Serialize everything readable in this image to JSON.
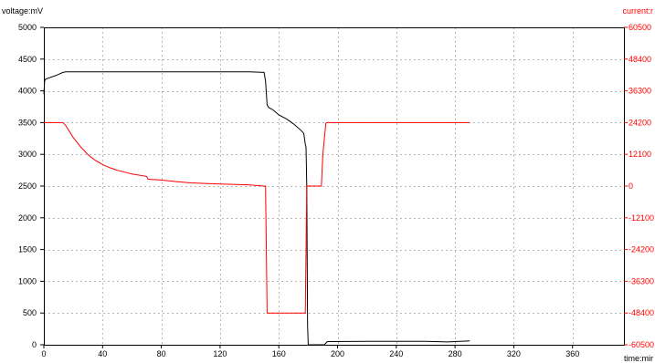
{
  "chart_data": {
    "type": "line",
    "title": "",
    "ylabel_left": "voltage:mV",
    "ylabel_right": "current:r",
    "xlabel": "time:mir",
    "xlim": [
      0,
      395
    ],
    "ylim_left": [
      0,
      5000
    ],
    "ylim_right": [
      -60500,
      60500
    ],
    "grid": true,
    "x_ticks": [
      0,
      40,
      80,
      120,
      160,
      200,
      240,
      280,
      320,
      360
    ],
    "y_ticks_left": [
      0,
      500,
      1000,
      1500,
      2000,
      2500,
      3000,
      3500,
      4000,
      4500,
      5000
    ],
    "y_ticks_right": [
      -60500,
      -48400,
      -36300,
      -24200,
      -12100,
      0,
      12100,
      24200,
      36300,
      48400,
      60500
    ],
    "series": [
      {
        "axis": "left",
        "color": "#000000",
        "x": [
          0,
          0.5,
          1,
          3,
          8,
          13,
          15,
          30,
          60,
          100,
          140,
          150,
          151,
          152,
          153,
          156,
          160,
          165,
          170,
          175,
          177,
          178,
          178.5,
          179,
          179.3,
          179.6,
          180,
          190,
          191,
          193,
          220,
          260,
          275,
          290
        ],
        "y": [
          3950,
          4150,
          4180,
          4200,
          4240,
          4290,
          4300,
          4300,
          4300,
          4300,
          4300,
          4290,
          4150,
          3780,
          3740,
          3700,
          3620,
          3560,
          3480,
          3380,
          3330,
          3160,
          3110,
          2500,
          1500,
          300,
          0,
          0,
          0,
          50,
          55,
          55,
          45,
          60
        ]
      },
      {
        "axis": "right",
        "color": "#ff0000",
        "x": [
          0,
          13,
          15,
          20,
          25,
          30,
          35,
          40,
          45,
          50,
          60,
          70,
          71,
          80,
          90,
          100,
          120,
          140,
          150,
          151,
          152,
          178,
          179,
          181,
          189,
          190,
          192,
          193,
          220,
          260,
          290
        ],
        "y": [
          24200,
          24200,
          23000,
          18500,
          15000,
          12000,
          9800,
          8200,
          7000,
          6000,
          4600,
          3700,
          2600,
          2300,
          1700,
          1200,
          800,
          400,
          0,
          0,
          -48400,
          -48400,
          0,
          0,
          0,
          12000,
          24000,
          24200,
          24200,
          24200,
          24200
        ]
      }
    ]
  }
}
